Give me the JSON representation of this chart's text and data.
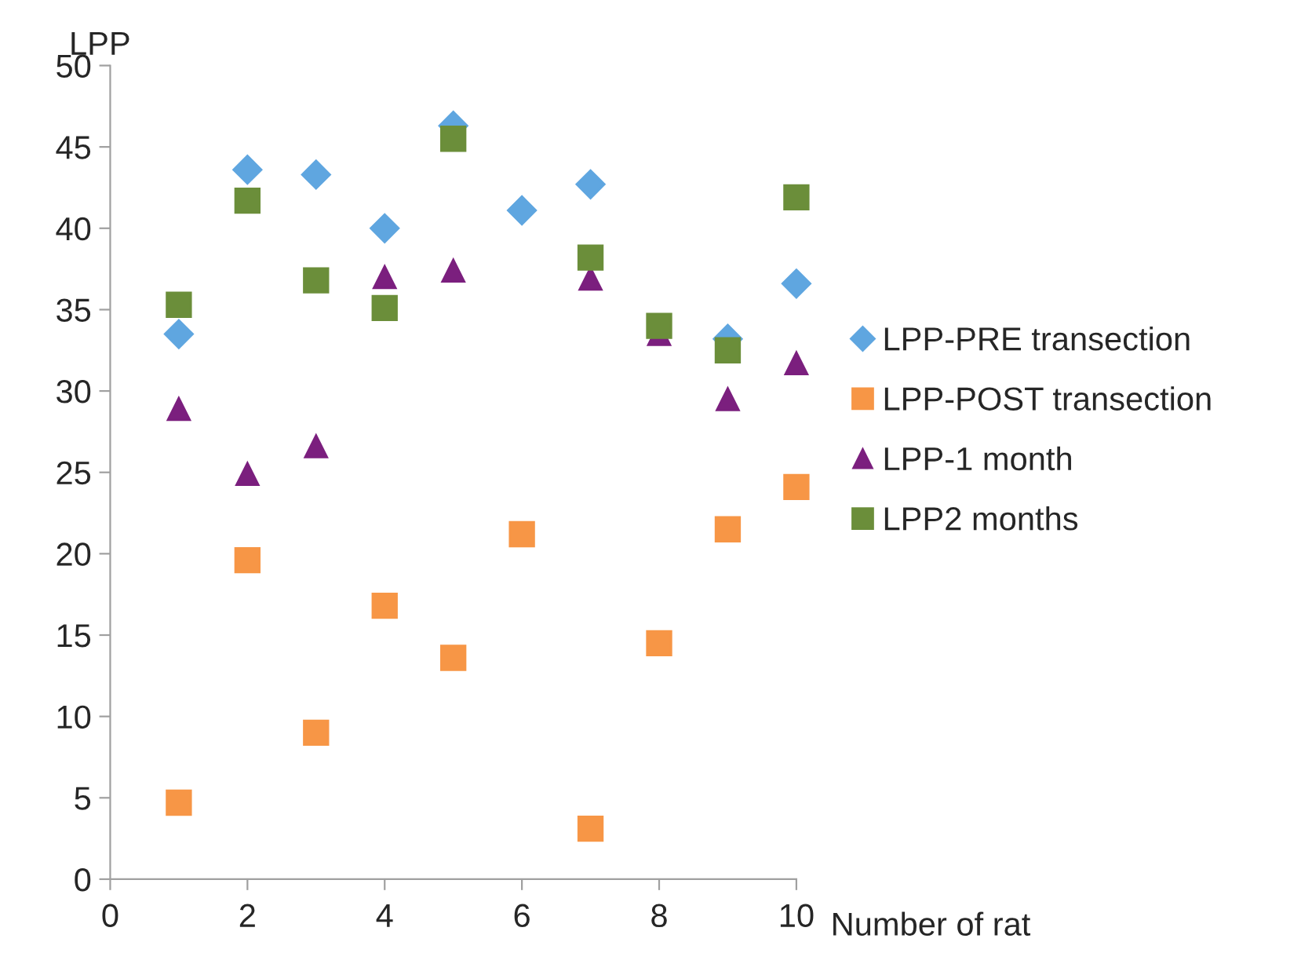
{
  "chart_data": {
    "type": "scatter",
    "xlabel": "Number of rat",
    "ylabel": "LPP",
    "x": [
      1,
      2,
      3,
      4,
      5,
      6,
      7,
      8,
      9,
      10
    ],
    "xlim": [
      0,
      10
    ],
    "xticks": [
      0,
      2,
      4,
      6,
      8,
      10
    ],
    "ylim": [
      0,
      50
    ],
    "yticks": [
      0,
      5,
      10,
      15,
      20,
      25,
      30,
      35,
      40,
      45,
      50
    ],
    "grid": false,
    "legend": "right",
    "series": [
      {
        "name": "LPP-PRE transection",
        "color": "#5fa6e0",
        "marker": "diamond",
        "values": [
          33.5,
          43.6,
          43.3,
          40.0,
          46.3,
          41.1,
          42.7,
          null,
          33.2,
          36.6
        ]
      },
      {
        "name": "LPP-POST transection",
        "color": "#f79646",
        "marker": "square",
        "values": [
          4.7,
          19.6,
          9.0,
          16.8,
          13.6,
          21.2,
          3.1,
          14.5,
          21.5,
          24.1
        ]
      },
      {
        "name": "LPP-1 month",
        "color": "#7b1f7e",
        "marker": "triangle",
        "values": [
          28.9,
          24.9,
          26.6,
          37.0,
          37.4,
          null,
          36.9,
          33.5,
          29.5,
          31.7
        ]
      },
      {
        "name": "LPP2 months",
        "color": "#6b8e3a",
        "marker": "square",
        "values": [
          35.3,
          41.7,
          36.8,
          35.1,
          45.5,
          null,
          38.2,
          34.0,
          32.5,
          41.9
        ]
      }
    ]
  }
}
